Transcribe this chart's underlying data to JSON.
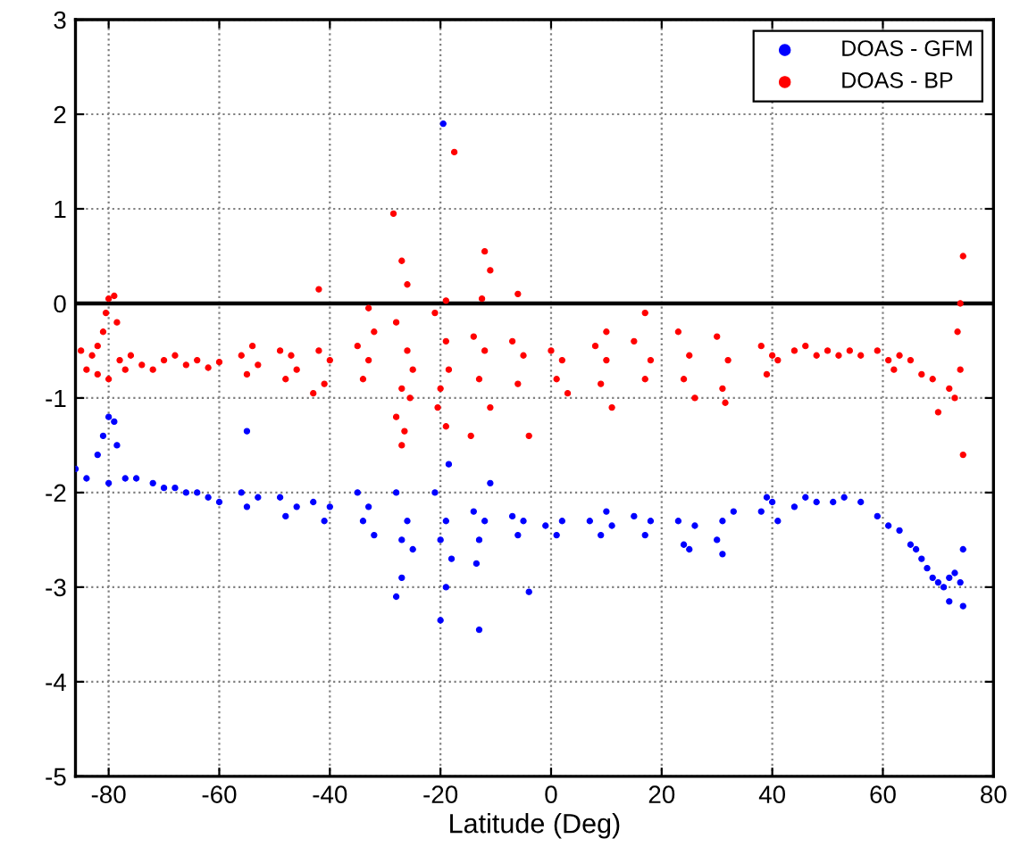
{
  "chart_data": {
    "type": "scatter",
    "xlabel": "Latitude (Deg)",
    "xlim": [
      -86,
      80
    ],
    "xticks": [
      -80,
      -60,
      -40,
      -20,
      0,
      20,
      40,
      60,
      80
    ],
    "ylim": [
      -5,
      3
    ],
    "yticks": [
      -5,
      -4,
      -3,
      -2,
      -1,
      0,
      1,
      2,
      3
    ],
    "grid": true,
    "legend": "top right",
    "marker": "circle",
    "ref_lines": [
      {
        "axis": "y",
        "value": 0,
        "color": "#000000"
      }
    ],
    "series": [
      {
        "name": "DOAS - GFM",
        "color": "#0000ff",
        "x": [
          -86,
          -84,
          -82,
          -81,
          -80,
          -79,
          -78.5,
          -80,
          -77,
          -75,
          -72,
          -70,
          -68,
          -66,
          -64,
          -62,
          -60,
          -55,
          -56,
          -55,
          -53,
          -49,
          -48,
          -46,
          -43,
          -41,
          -40,
          -35,
          -34,
          -33,
          -32,
          -28,
          -27,
          -26,
          -25,
          -28,
          -27,
          -21,
          -20,
          -19,
          -18,
          -20,
          -19.5,
          -19,
          -18.5,
          -14,
          -13,
          -12,
          -13,
          -11,
          -13.5,
          -7,
          -6,
          -5,
          -4,
          -1,
          1,
          2,
          7,
          9,
          10,
          11,
          15,
          17,
          18,
          23,
          24,
          26,
          25,
          30,
          31,
          33,
          31,
          38,
          40,
          41,
          39,
          44,
          46,
          48,
          51,
          53,
          56,
          59,
          61,
          63,
          65,
          66,
          67,
          68,
          69,
          70,
          71,
          72,
          72,
          73,
          74,
          74.5,
          74.5
        ],
        "values": [
          -1.75,
          -1.85,
          -1.6,
          -1.4,
          -1.2,
          -1.25,
          -1.5,
          -1.9,
          -1.85,
          -1.85,
          -1.9,
          -1.95,
          -1.95,
          -2.0,
          -2.0,
          -2.05,
          -2.1,
          -1.35,
          -2.0,
          -2.15,
          -2.05,
          -2.05,
          -2.25,
          -2.15,
          -2.1,
          -2.3,
          -2.15,
          -2.0,
          -2.3,
          -2.15,
          -2.45,
          -2.0,
          -2.5,
          -2.3,
          -2.6,
          -3.1,
          -2.9,
          -2.0,
          -2.5,
          -2.3,
          -2.7,
          -3.35,
          1.9,
          -3.0,
          -1.7,
          -2.2,
          -2.5,
          -2.3,
          -3.45,
          -1.9,
          -2.75,
          -2.25,
          -2.45,
          -2.3,
          -3.05,
          -2.35,
          -2.45,
          -2.3,
          -2.3,
          -2.45,
          -2.2,
          -2.35,
          -2.25,
          -2.45,
          -2.3,
          -2.3,
          -2.55,
          -2.35,
          -2.6,
          -2.5,
          -2.3,
          -2.2,
          -2.65,
          -2.2,
          -2.1,
          -2.3,
          -2.05,
          -2.15,
          -2.05,
          -2.1,
          -2.1,
          -2.05,
          -2.1,
          -2.25,
          -2.35,
          -2.4,
          -2.55,
          -2.6,
          -2.7,
          -2.8,
          -2.9,
          -2.95,
          -3.0,
          -3.15,
          -2.9,
          -2.85,
          -2.95,
          -3.2,
          -2.6
        ]
      },
      {
        "name": "DOAS - BP",
        "color": "#ff0000",
        "x": [
          -85,
          -84,
          -83,
          -82,
          -81,
          -80.5,
          -80,
          -79,
          -78.5,
          -80,
          -82,
          -78,
          -77,
          -76,
          -74,
          -72,
          -70,
          -68,
          -66,
          -64,
          -62,
          -60,
          -56,
          -55,
          -54,
          -53,
          -49,
          -48,
          -47,
          -46,
          -42,
          -41,
          -40,
          -43,
          -42,
          -35,
          -34,
          -33,
          -32,
          -33,
          -28,
          -27,
          -26,
          -25,
          -28,
          -27,
          -26.5,
          -28.5,
          -27,
          -26,
          -25.5,
          -21,
          -20,
          -19,
          -18.5,
          -20.5,
          -19,
          -17.5,
          -19,
          -14,
          -13,
          -12,
          -11,
          -12,
          -11,
          -12.5,
          -14.5,
          -7,
          -6,
          -5,
          -6,
          -4,
          0,
          1,
          2,
          3,
          8,
          9,
          10,
          11,
          10,
          15,
          17,
          18,
          17,
          23,
          24,
          25,
          26,
          30,
          31,
          32,
          31.5,
          38,
          39,
          40,
          41,
          44,
          46,
          48,
          50,
          52,
          54,
          56,
          59,
          61,
          63,
          62,
          65,
          67,
          69,
          70,
          72,
          73,
          74,
          74.5,
          74.5,
          73.5,
          74
        ],
        "values": [
          -0.5,
          -0.7,
          -0.55,
          -0.45,
          -0.3,
          -0.1,
          0.05,
          0.08,
          -0.2,
          -0.8,
          -0.75,
          -0.6,
          -0.7,
          -0.55,
          -0.65,
          -0.7,
          -0.6,
          -0.55,
          -0.65,
          -0.6,
          -0.68,
          -0.62,
          -0.55,
          -0.75,
          -0.45,
          -0.65,
          -0.5,
          -0.8,
          -0.55,
          -0.7,
          -0.5,
          -0.85,
          -0.6,
          -0.95,
          0.15,
          -0.45,
          -0.8,
          -0.6,
          -0.3,
          -0.05,
          -0.2,
          -0.9,
          -0.5,
          -0.7,
          -1.2,
          -1.5,
          -1.35,
          0.95,
          0.45,
          0.2,
          -1.0,
          -0.1,
          -0.9,
          -0.4,
          -0.7,
          -1.1,
          -1.3,
          1.6,
          0.03,
          -0.35,
          -0.8,
          -0.5,
          -1.1,
          0.55,
          0.35,
          0.05,
          -1.4,
          -0.4,
          -0.85,
          -0.55,
          0.1,
          -1.4,
          -0.5,
          -0.8,
          -0.6,
          -0.95,
          -0.45,
          -0.85,
          -0.6,
          -1.1,
          -0.3,
          -0.4,
          -0.8,
          -0.6,
          -0.1,
          -0.3,
          -0.8,
          -0.55,
          -1.0,
          -0.35,
          -0.9,
          -0.6,
          -1.05,
          -0.45,
          -0.75,
          -0.55,
          -0.6,
          -0.5,
          -0.45,
          -0.55,
          -0.5,
          -0.55,
          -0.5,
          -0.55,
          -0.5,
          -0.6,
          -0.55,
          -0.7,
          -0.6,
          -0.75,
          -0.8,
          -1.15,
          -0.9,
          -1.0,
          -0.7,
          -1.6,
          0.5,
          -0.3,
          0.0
        ]
      }
    ]
  }
}
